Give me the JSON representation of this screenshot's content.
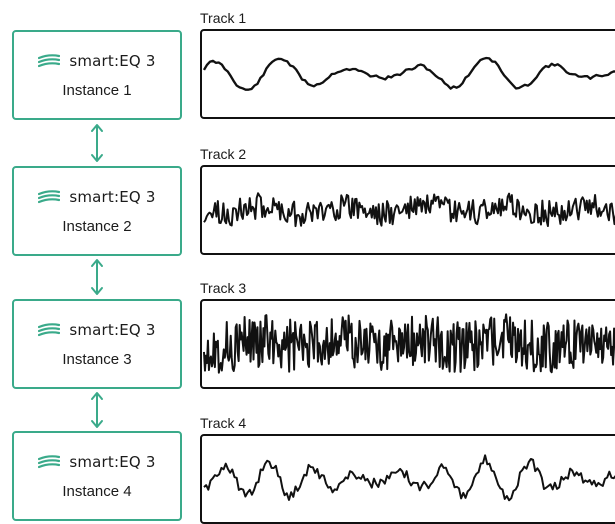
{
  "colors": {
    "accent": "#3aaa8a",
    "waveform": "#111111"
  },
  "brand": {
    "name": "smart:EQ 3",
    "icon": "sonible-logo-icon"
  },
  "instances": [
    {
      "label": "Instance 1"
    },
    {
      "label": "Instance 2"
    },
    {
      "label": "Instance 3"
    },
    {
      "label": "Instance 4"
    }
  ],
  "tracks": [
    {
      "title": "Track 1"
    },
    {
      "title": "Track 2"
    },
    {
      "title": "Track 3"
    },
    {
      "title": "Track 4"
    }
  ],
  "links": [
    {
      "icon": "double-arrow-icon"
    },
    {
      "icon": "double-arrow-icon"
    },
    {
      "icon": "double-arrow-icon"
    }
  ]
}
